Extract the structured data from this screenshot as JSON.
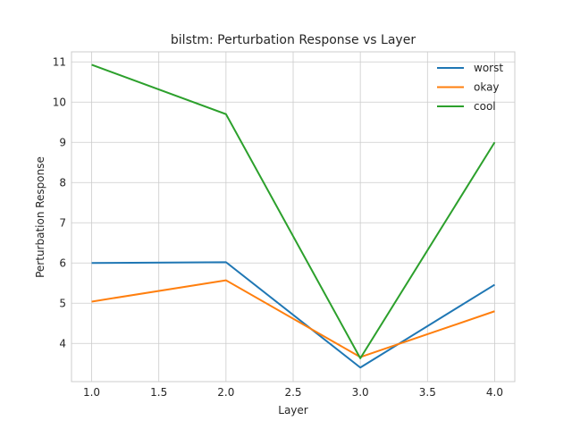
{
  "chart_data": {
    "type": "line",
    "title": "bilstm: Perturbation Response vs Layer",
    "xlabel": "Layer",
    "ylabel": "Perturbation Response",
    "xlim": [
      0.85,
      4.15
    ],
    "ylim": [
      3.05,
      11.25
    ],
    "xticks": [
      1.0,
      1.5,
      2.0,
      2.5,
      3.0,
      3.5,
      4.0
    ],
    "xtick_labels": [
      "1.0",
      "1.5",
      "2.0",
      "2.5",
      "3.0",
      "3.5",
      "4.0"
    ],
    "yticks": [
      4,
      5,
      6,
      7,
      8,
      9,
      10,
      11
    ],
    "ytick_labels": [
      "4",
      "5",
      "6",
      "7",
      "8",
      "9",
      "10",
      "11"
    ],
    "grid": true,
    "legend": "top-right",
    "x": [
      1,
      2,
      3,
      4
    ],
    "series": [
      {
        "name": "worst",
        "color": "#1f77b4",
        "values": [
          6.0,
          6.02,
          3.4,
          5.46
        ]
      },
      {
        "name": "okay",
        "color": "#ff7f0e",
        "values": [
          5.04,
          5.57,
          3.66,
          4.8
        ]
      },
      {
        "name": "cool",
        "color": "#2ca02c",
        "values": [
          10.93,
          9.7,
          3.63,
          9.0
        ]
      }
    ]
  }
}
